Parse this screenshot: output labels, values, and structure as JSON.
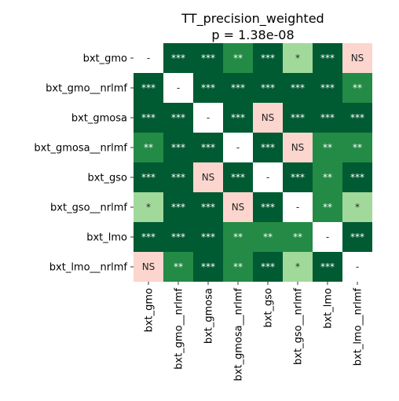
{
  "chart_data": {
    "type": "heatmap",
    "title": "TT_precision_weighted",
    "subtitle": "p = 1.38e-08",
    "rows": [
      "bxt_gmo",
      "bxt_gmo__nrlmf",
      "bxt_gmosa",
      "bxt_gmosa__nrlmf",
      "bxt_gso",
      "bxt_gso__nrlmf",
      "bxt_lmo",
      "bxt_lmo__nrlmf"
    ],
    "columns": [
      "bxt_gmo",
      "bxt_gmo__nrlmf",
      "bxt_gmosa",
      "bxt_gmosa__nrlmf",
      "bxt_gso",
      "bxt_gso__nrlmf",
      "bxt_lmo",
      "bxt_lmo__nrlmf"
    ],
    "cells": [
      [
        "-",
        "***",
        "***",
        "**",
        "***",
        "*",
        "***",
        "NS"
      ],
      [
        "***",
        "-",
        "***",
        "***",
        "***",
        "***",
        "***",
        "**"
      ],
      [
        "***",
        "***",
        "-",
        "***",
        "NS",
        "***",
        "***",
        "***"
      ],
      [
        "**",
        "***",
        "***",
        "-",
        "***",
        "NS",
        "**",
        "**"
      ],
      [
        "***",
        "***",
        "NS",
        "***",
        "-",
        "***",
        "**",
        "***"
      ],
      [
        "*",
        "***",
        "***",
        "NS",
        "***",
        "-",
        "**",
        "*"
      ],
      [
        "***",
        "***",
        "***",
        "**",
        "**",
        "**",
        "-",
        "***"
      ],
      [
        "NS",
        "**",
        "***",
        "**",
        "***",
        "*",
        "***",
        "-"
      ]
    ],
    "colors": {
      "***": "#005a32",
      "**": "#238b45",
      "*": "#a1d99b",
      "NS": "#fcd5ce",
      "-": "#ffffff"
    },
    "text_colors": {
      "***": "#ffffff",
      "**": "#ffffff",
      "*": "#262626",
      "NS": "#262626",
      "-": "#262626"
    }
  }
}
